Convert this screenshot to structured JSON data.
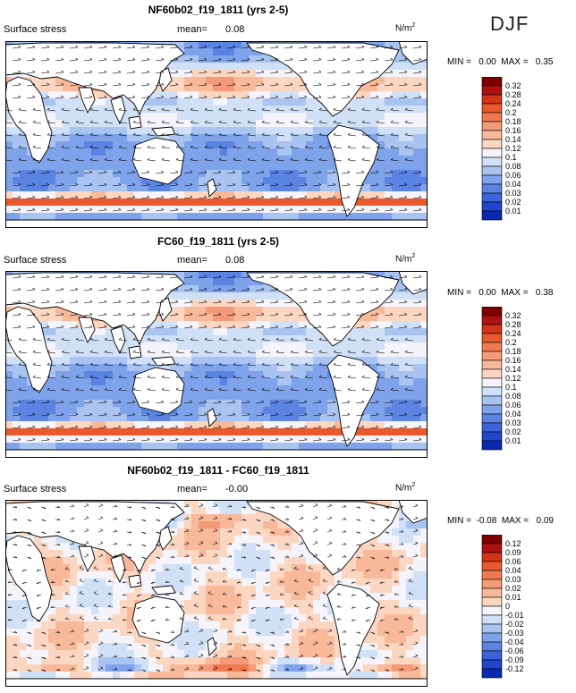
{
  "season": "DJF",
  "colors": {
    "pos_ramp": [
      "#fbe3d3",
      "#f8c4a8",
      "#f5a583",
      "#f28460",
      "#ef6a3d",
      "#e54d26",
      "#d13316",
      "#a00e0e",
      "#7d0000"
    ],
    "neg_ramp": [
      "#e6eefb",
      "#bcd1f5",
      "#93b3ee",
      "#6d94e8",
      "#4d79e0",
      "#345fd8",
      "#1c44cc",
      "#0c2cb5",
      "#001a8c"
    ],
    "land": "#ffffff",
    "coast": "#000000"
  },
  "chart_data": [
    {
      "type": "heatmap",
      "title": "NF60b02_f19_1811 (yrs 2-5)",
      "subtitle": "Surface stress",
      "mean_label": "mean=",
      "mean_value": "0.08",
      "units": "N/m",
      "units_sup": "2",
      "min_max_label": "MIN =   0.00  MAX =   0.35",
      "min": 0.0,
      "max": 0.35,
      "colorbar_ticks": [
        "0.32",
        "0.28",
        "0.24",
        "0.2",
        "0.18",
        "0.16",
        "0.14",
        "0.12",
        "0.1",
        "0.08",
        "0.06",
        "0.04",
        "0.03",
        "0.02",
        "0.01"
      ],
      "colorbar_colors": [
        "#7d0000",
        "#b01010",
        "#d33316",
        "#e85a2e",
        "#f07a50",
        "#f59a78",
        "#f8b89a",
        "#fbd7c2",
        "#f4f4fa",
        "#cfe0f7",
        "#a9c4f1",
        "#7fa3ea",
        "#5a83e2",
        "#3b63d8",
        "#1e45cc",
        "#0a28b0"
      ],
      "field": "absolute"
    },
    {
      "type": "heatmap",
      "title": "FC60_f19_1811 (yrs 2-5)",
      "subtitle": "Surface stress",
      "mean_label": "mean=",
      "mean_value": "0.08",
      "units": "N/m",
      "units_sup": "2",
      "min_max_label": "MIN =   0.00  MAX =   0.38",
      "min": 0.0,
      "max": 0.38,
      "colorbar_ticks": [
        "0.32",
        "0.28",
        "0.24",
        "0.2",
        "0.18",
        "0.16",
        "0.14",
        "0.12",
        "0.1",
        "0.08",
        "0.06",
        "0.04",
        "0.03",
        "0.02",
        "0.01"
      ],
      "colorbar_colors": [
        "#7d0000",
        "#b01010",
        "#d33316",
        "#e85a2e",
        "#f07a50",
        "#f59a78",
        "#f8b89a",
        "#fbd7c2",
        "#f4f4fa",
        "#cfe0f7",
        "#a9c4f1",
        "#7fa3ea",
        "#5a83e2",
        "#3b63d8",
        "#1e45cc",
        "#0a28b0"
      ],
      "field": "absolute"
    },
    {
      "type": "heatmap",
      "title": "NF60b02_f19_1811 - FC60_f19_1811",
      "subtitle": "Surface stress",
      "mean_label": "mean=",
      "mean_value": "-0.00",
      "units": "N/m",
      "units_sup": "2",
      "min_max_label": "MIN =  -0.08  MAX =   0.09",
      "min": -0.08,
      "max": 0.09,
      "colorbar_ticks": [
        "0.12",
        "0.09",
        "0.06",
        "0.04",
        "0.03",
        "0.02",
        "0.01",
        "0",
        "-0.01",
        "-0.02",
        "-0.03",
        "-0.04",
        "-0.06",
        "-0.09",
        "-0.12"
      ],
      "colorbar_colors": [
        "#7d0000",
        "#b01010",
        "#d33316",
        "#e85a2e",
        "#f07a50",
        "#f59a78",
        "#f8b89a",
        "#fbd7c2",
        "#f4f4fa",
        "#cfe0f7",
        "#a9c4f1",
        "#7fa3ea",
        "#5a83e2",
        "#3b63d8",
        "#1e45cc",
        "#0a28b0"
      ],
      "field": "difference"
    }
  ]
}
